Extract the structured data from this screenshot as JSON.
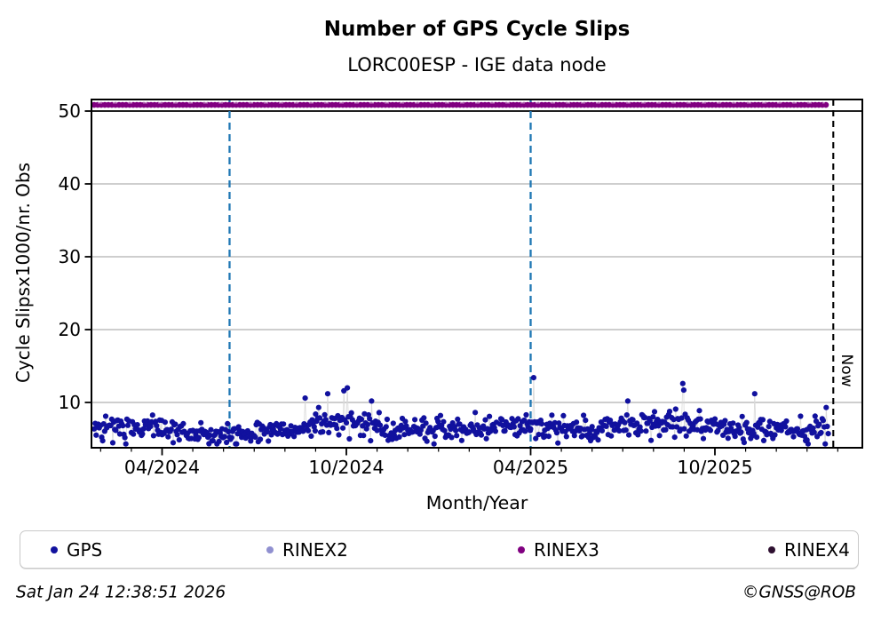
{
  "figure": {
    "title": "Number of GPS Cycle Slips",
    "subtitle": "LORC00ESP - IGE data node",
    "footer_left": "Sat Jan 24 12:38:51 2026",
    "footer_right": "©GNSS@ROB"
  },
  "legend": {
    "items": [
      {
        "label": "GPS",
        "color": "#11119e",
        "marker": "dot"
      },
      {
        "label": "RINEX2",
        "color": "#9090d0",
        "marker": "dot"
      },
      {
        "label": "RINEX3",
        "color": "#800080",
        "marker": "dot"
      },
      {
        "label": "RINEX4",
        "color": "#2e1030",
        "marker": "dot"
      }
    ]
  },
  "chart_data": {
    "type": "scatter",
    "title": "Number of GPS Cycle Slips",
    "subtitle": "LORC00ESP - IGE data node",
    "xlabel": "Month/Year",
    "ylabel": "Cycle Slipsx1000/nr. Obs",
    "ylim": [
      3.8,
      51.6
    ],
    "x_range": [
      "2024-01-22",
      "2026-02-24"
    ],
    "y_ticks": [
      10,
      20,
      30,
      40,
      50
    ],
    "x_major_ticks": [
      {
        "label": "04/2024",
        "date": "2024-04-01"
      },
      {
        "label": "10/2024",
        "date": "2024-10-01"
      },
      {
        "label": "04/2025",
        "date": "2025-04-01"
      },
      {
        "label": "10/2025",
        "date": "2025-10-01"
      }
    ],
    "x_minor_tick_interval_months": 1,
    "grid": {
      "horizontal": true,
      "color": "#b0b0b0"
    },
    "threshold_line": {
      "y": 50,
      "color": "#000000",
      "style": "solid"
    },
    "event_lines": [
      {
        "date": "2024-06-07",
        "color": "#1f77b4",
        "style": "dashed"
      },
      {
        "date": "2025-04-01",
        "color": "#1f77b4",
        "style": "dashed"
      }
    ],
    "now_line": {
      "date": "2026-01-27",
      "label": "Now",
      "color": "#000000",
      "style": "dashed"
    },
    "series": [
      {
        "name": "GPS",
        "color": "#11119e",
        "marker": "dot",
        "visible": true,
        "start_date": "2024-01-25",
        "days": 730,
        "y_band": {
          "min": 4.3,
          "max": 9.5
        },
        "monthly_mean_from_2024_01": [
          6.1,
          6.5,
          6.6,
          6.4,
          5.9,
          5.4,
          5.6,
          6.2,
          7.1,
          7.3,
          6.6,
          6.1,
          6.0,
          6.4,
          6.6,
          6.9,
          6.4,
          6.2,
          6.6,
          7.2,
          7.1,
          6.6,
          6.3,
          5.9,
          6.0
        ],
        "noise_sd": 0.82,
        "seed": 20260124,
        "outliers": {
          "2024-08-21": 10.6,
          "2024-09-13": 11.2,
          "2024-09-29": 11.6,
          "2024-10-02": 12.0,
          "2024-10-26": 10.2,
          "2025-04-04": 13.4,
          "2025-07-06": 10.2,
          "2025-08-30": 12.6,
          "2025-08-31": 11.7,
          "2025-11-10": 11.2,
          "2026-01-20": 9.3
        }
      },
      {
        "name": "RINEX2",
        "color": "#9090d0",
        "visible": false
      },
      {
        "name": "RINEX3",
        "color": "#800080",
        "visible": true,
        "constant_value": 50.85,
        "start_date": "2024-01-25",
        "end_date": "2026-01-22"
      },
      {
        "name": "RINEX4",
        "color": "#2e1030",
        "visible": false
      }
    ]
  }
}
